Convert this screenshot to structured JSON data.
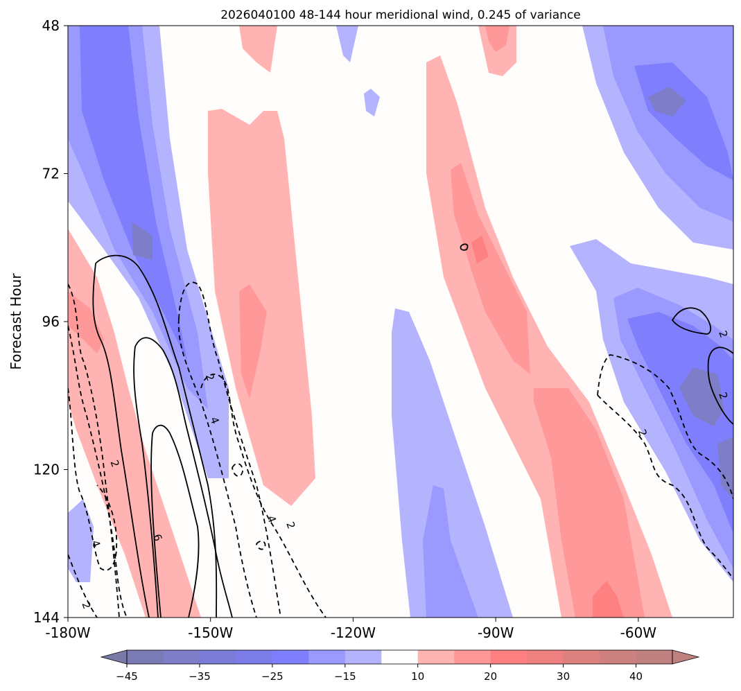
{
  "chart_data": {
    "type": "heatmap",
    "title": "2026040100 48-144 hour meridional wind, 0.245 of variance",
    "xlabel": "",
    "ylabel": "Forecast Hour",
    "xlim": [
      -180,
      -40
    ],
    "ylim": [
      48,
      144
    ],
    "y_inverted": true,
    "x_ticks": [
      -180,
      -150,
      -120,
      -90,
      -60
    ],
    "x_tick_labels": [
      "-180W",
      "-150W",
      "-120W",
      "-90W",
      "-60W"
    ],
    "y_ticks": [
      48,
      72,
      96,
      120,
      144
    ],
    "y_tick_labels": [
      "48",
      "72",
      "96",
      "120",
      "144"
    ],
    "colorbar": {
      "orientation": "horizontal",
      "extend": "both",
      "ticks": [
        -45,
        -35,
        -25,
        -15,
        10,
        20,
        30,
        40
      ],
      "tick_labels": [
        "−45",
        "−35",
        "−25",
        "−15",
        "10",
        "20",
        "30",
        "40"
      ],
      "levels": [
        -45,
        -40,
        -35,
        -30,
        -25,
        -20,
        -15,
        -10,
        10,
        15,
        20,
        25,
        30,
        35,
        40,
        45
      ],
      "colors": [
        "#7a7ab5",
        "#7d7dc8",
        "#7b7bd8",
        "#7d7de8",
        "#7f7ffe",
        "#9999fe",
        "#b3b3fe",
        "#ffffff",
        "#ffb3b3",
        "#ff9999",
        "#ff8080",
        "#ee8080",
        "#dd8080",
        "#cc8080",
        "#c08080"
      ],
      "under_color": "#7a7aa8",
      "over_color": "#c08080"
    },
    "contour_labels": [
      {
        "text": "2",
        "x": -42,
        "y": 98
      },
      {
        "text": "2",
        "x": -42,
        "y": 108
      },
      {
        "text": "2",
        "x": -150,
        "y": 105
      },
      {
        "text": "4",
        "x": -149,
        "y": 112
      },
      {
        "text": "2",
        "x": -59,
        "y": 114
      },
      {
        "text": "2",
        "x": -170,
        "y": 119
      },
      {
        "text": "6",
        "x": -161,
        "y": 131
      },
      {
        "text": "4",
        "x": -137,
        "y": 128
      },
      {
        "text": "2",
        "x": -133,
        "y": 129
      },
      {
        "text": "4",
        "x": -174,
        "y": 132
      },
      {
        "text": "2",
        "x": -176,
        "y": 142
      }
    ]
  }
}
